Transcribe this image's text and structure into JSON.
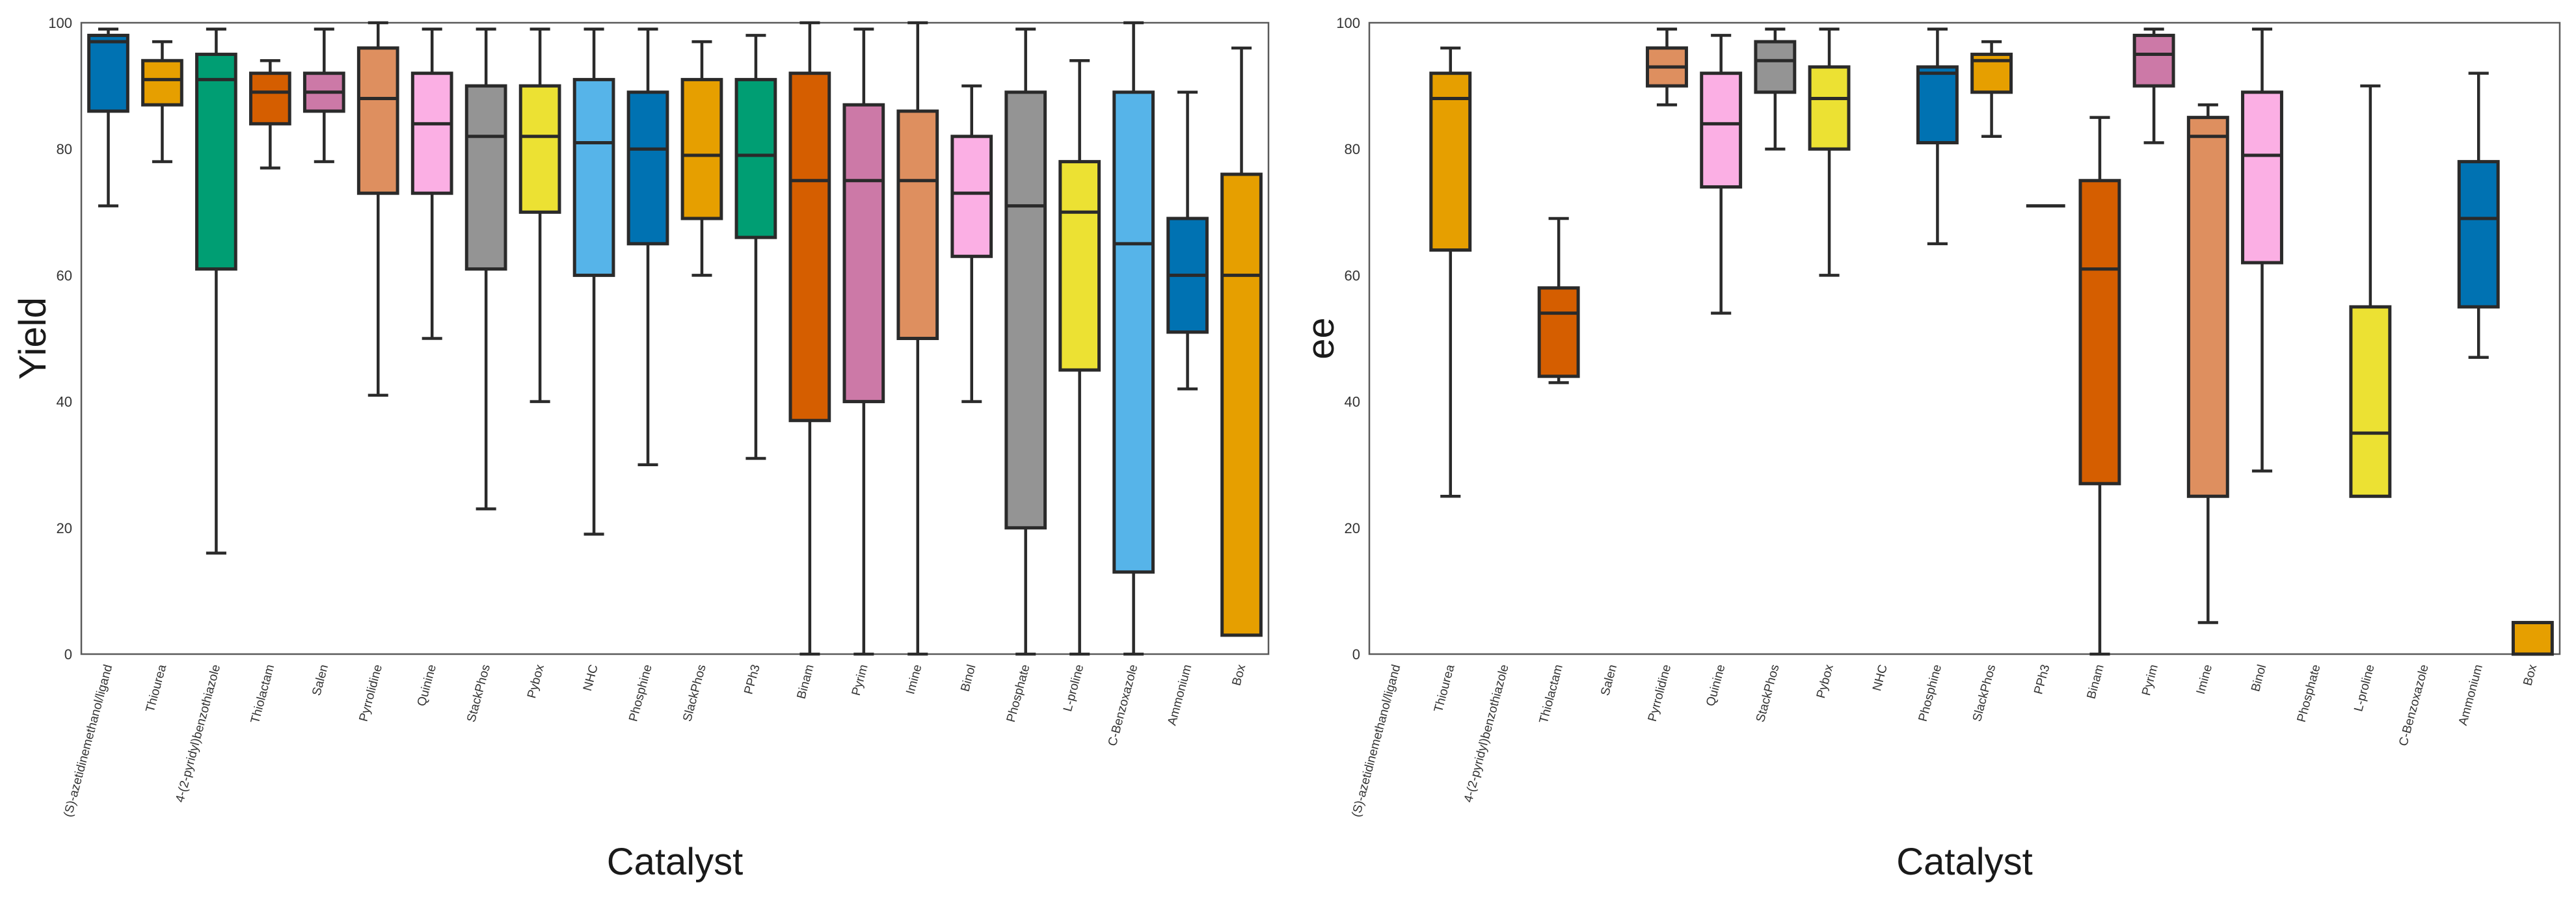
{
  "colors": {
    "blue": "#0072b2",
    "orange": "#e69f00",
    "green": "#009e73",
    "vermillion": "#d55e00",
    "pink": "#cc79a7",
    "tan": "#de8f5f",
    "lightpink": "#fbafe4",
    "gray": "#949494",
    "yellow": "#ece133",
    "skyblue": "#56b4e9"
  },
  "chart_data": [
    {
      "type": "box",
      "title": "",
      "xlabel": "Catalyst",
      "ylabel": "Yield",
      "ylim": [
        0,
        100
      ],
      "yticks": [
        0,
        20,
        40,
        60,
        80,
        100
      ],
      "grid": false,
      "categories": [
        "(S)-azetidinemethanol/ligand",
        "Thiourea",
        "4-(2-pyridyl)benzothiazole",
        "Thiolactam",
        "Salen",
        "Pyrrolidine",
        "Quinine",
        "StackPhos",
        "Pybox",
        "NHC",
        "Phosphine",
        "SlackPhos",
        "PPh3",
        "Binam",
        "Pyrim",
        "Imine",
        "Binol",
        "Phosphate",
        "L-proline",
        "C-Benzoxazole",
        "Ammonium",
        "Box"
      ],
      "boxes": [
        {
          "min": 71,
          "q1": 86,
          "median": 97,
          "q3": 98,
          "max": 99,
          "color": "blue"
        },
        {
          "min": 78,
          "q1": 87,
          "median": 91,
          "q3": 94,
          "max": 97,
          "color": "orange"
        },
        {
          "min": 16,
          "q1": 61,
          "median": 91,
          "q3": 95,
          "max": 99,
          "color": "green"
        },
        {
          "min": 77,
          "q1": 84,
          "median": 89,
          "q3": 92,
          "max": 94,
          "color": "vermillion"
        },
        {
          "min": 78,
          "q1": 86,
          "median": 89,
          "q3": 92,
          "max": 99,
          "color": "pink"
        },
        {
          "min": 41,
          "q1": 73,
          "median": 88,
          "q3": 96,
          "max": 100,
          "color": "tan"
        },
        {
          "min": 50,
          "q1": 73,
          "median": 84,
          "q3": 92,
          "max": 99,
          "color": "lightpink"
        },
        {
          "min": 23,
          "q1": 61,
          "median": 82,
          "q3": 90,
          "max": 99,
          "color": "gray"
        },
        {
          "min": 40,
          "q1": 70,
          "median": 82,
          "q3": 90,
          "max": 99,
          "color": "yellow"
        },
        {
          "min": 19,
          "q1": 60,
          "median": 81,
          "q3": 91,
          "max": 99,
          "color": "skyblue"
        },
        {
          "min": 30,
          "q1": 65,
          "median": 80,
          "q3": 89,
          "max": 99,
          "color": "blue"
        },
        {
          "min": 60,
          "q1": 69,
          "median": 79,
          "q3": 91,
          "max": 97,
          "color": "orange"
        },
        {
          "min": 31,
          "q1": 66,
          "median": 79,
          "q3": 91,
          "max": 98,
          "color": "green"
        },
        {
          "min": 0,
          "q1": 37,
          "median": 75,
          "q3": 92,
          "max": 100,
          "color": "vermillion"
        },
        {
          "min": 0,
          "q1": 40,
          "median": 75,
          "q3": 87,
          "max": 99,
          "color": "pink"
        },
        {
          "min": 0,
          "q1": 50,
          "median": 75,
          "q3": 86,
          "max": 100,
          "color": "tan"
        },
        {
          "min": 40,
          "q1": 63,
          "median": 73,
          "q3": 82,
          "max": 90,
          "color": "lightpink"
        },
        {
          "min": 0,
          "q1": 20,
          "median": 71,
          "q3": 89,
          "max": 99,
          "color": "gray"
        },
        {
          "min": 0,
          "q1": 45,
          "median": 70,
          "q3": 78,
          "max": 94,
          "color": "yellow"
        },
        {
          "min": 0,
          "q1": 13,
          "median": 65,
          "q3": 89,
          "max": 100,
          "color": "skyblue"
        },
        {
          "min": 42,
          "q1": 51,
          "median": 60,
          "q3": 69,
          "max": 89,
          "color": "blue"
        },
        {
          "min": 3,
          "q1": 3,
          "median": 60,
          "q3": 76,
          "max": 96,
          "color": "orange"
        }
      ]
    },
    {
      "type": "box",
      "title": "",
      "xlabel": "Catalyst",
      "ylabel": "ee",
      "ylim": [
        0,
        100
      ],
      "yticks": [
        0,
        20,
        40,
        60,
        80,
        100
      ],
      "grid": false,
      "categories": [
        "(S)-azetidinemethanol/ligand",
        "Thiourea",
        "4-(2-pyridyl)benzothiazole",
        "Thiolactam",
        "Salen",
        "Pyrrolidine",
        "Quinine",
        "StackPhos",
        "Pybox",
        "NHC",
        "Phosphine",
        "SlackPhos",
        "PPh3",
        "Binam",
        "Pyrim",
        "Imine",
        "Binol",
        "Phosphate",
        "L-proline",
        "C-Benzoxazole",
        "Ammonium",
        "Box"
      ],
      "boxes": [
        null,
        {
          "min": 25,
          "q1": 64,
          "median": 88,
          "q3": 92,
          "max": 96,
          "color": "orange"
        },
        null,
        {
          "min": 43,
          "q1": 44,
          "median": 54,
          "q3": 58,
          "max": 69,
          "color": "vermillion"
        },
        null,
        {
          "min": 87,
          "q1": 90,
          "median": 93,
          "q3": 96,
          "max": 99,
          "color": "tan"
        },
        {
          "min": 54,
          "q1": 74,
          "median": 84,
          "q3": 92,
          "max": 98,
          "color": "lightpink"
        },
        {
          "min": 80,
          "q1": 89,
          "median": 94,
          "q3": 97,
          "max": 99,
          "color": "gray"
        },
        {
          "min": 60,
          "q1": 80,
          "median": 88,
          "q3": 93,
          "max": 99,
          "color": "yellow"
        },
        null,
        {
          "min": 65,
          "q1": 81,
          "median": 92,
          "q3": 93,
          "max": 99,
          "color": "blue"
        },
        {
          "min": 82,
          "q1": 89,
          "median": 94,
          "q3": 95,
          "max": 97,
          "color": "orange"
        },
        {
          "min": 71,
          "q1": 71,
          "median": 71,
          "q3": 71,
          "max": 71,
          "color": "green"
        },
        {
          "min": 0,
          "q1": 27,
          "median": 61,
          "q3": 75,
          "max": 85,
          "color": "vermillion"
        },
        {
          "min": 81,
          "q1": 90,
          "median": 95,
          "q3": 98,
          "max": 99,
          "color": "pink"
        },
        {
          "min": 5,
          "q1": 25,
          "median": 82,
          "q3": 85,
          "max": 87,
          "color": "tan"
        },
        {
          "min": 29,
          "q1": 62,
          "median": 79,
          "q3": 89,
          "max": 99,
          "color": "lightpink"
        },
        null,
        {
          "min": 25,
          "q1": 25,
          "median": 35,
          "q3": 55,
          "max": 90,
          "color": "yellow"
        },
        null,
        {
          "min": 47,
          "q1": 55,
          "median": 69,
          "q3": 78,
          "max": 92,
          "color": "blue"
        },
        {
          "min": 0,
          "q1": 0,
          "median": 5,
          "q3": 5,
          "max": 5,
          "color": "orange"
        }
      ]
    }
  ]
}
